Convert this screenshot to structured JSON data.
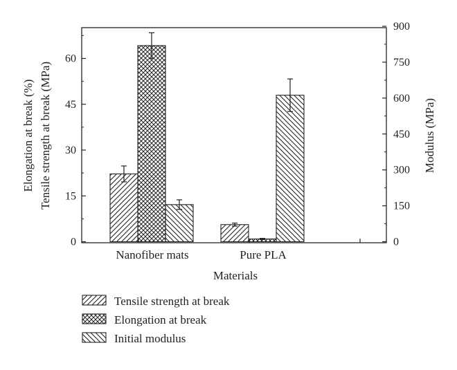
{
  "chart_data": {
    "type": "bar",
    "categories": [
      "Nanofiber mats",
      "Pure PLA"
    ],
    "xlabel": "Materials",
    "left_axis": {
      "labels": [
        "Tensile strength at break (MPa)",
        "Elongation at break (%)"
      ],
      "ylim": [
        0,
        70
      ],
      "ticks": [
        0,
        15,
        30,
        45,
        60
      ]
    },
    "right_axis": {
      "label": "Modulus (MPa)",
      "ylim": [
        0,
        900
      ],
      "ticks": [
        0,
        150,
        300,
        450,
        600,
        750,
        900
      ]
    },
    "series": [
      {
        "name": "Tensile strength at break",
        "axis": "left",
        "pattern": "hatch-forward",
        "values": [
          22.2,
          5.6
        ],
        "errors": [
          2.6,
          0.5
        ]
      },
      {
        "name": "Elongation at break",
        "axis": "left",
        "pattern": "crosshatch",
        "values": [
          64.2,
          0.9
        ],
        "errors": [
          4.2,
          0.2
        ]
      },
      {
        "name": "Initial modulus",
        "axis": "right",
        "pattern": "hatch-back",
        "values": [
          155,
          612
        ],
        "errors": [
          20,
          68
        ]
      }
    ],
    "legend_position": "bottom"
  }
}
